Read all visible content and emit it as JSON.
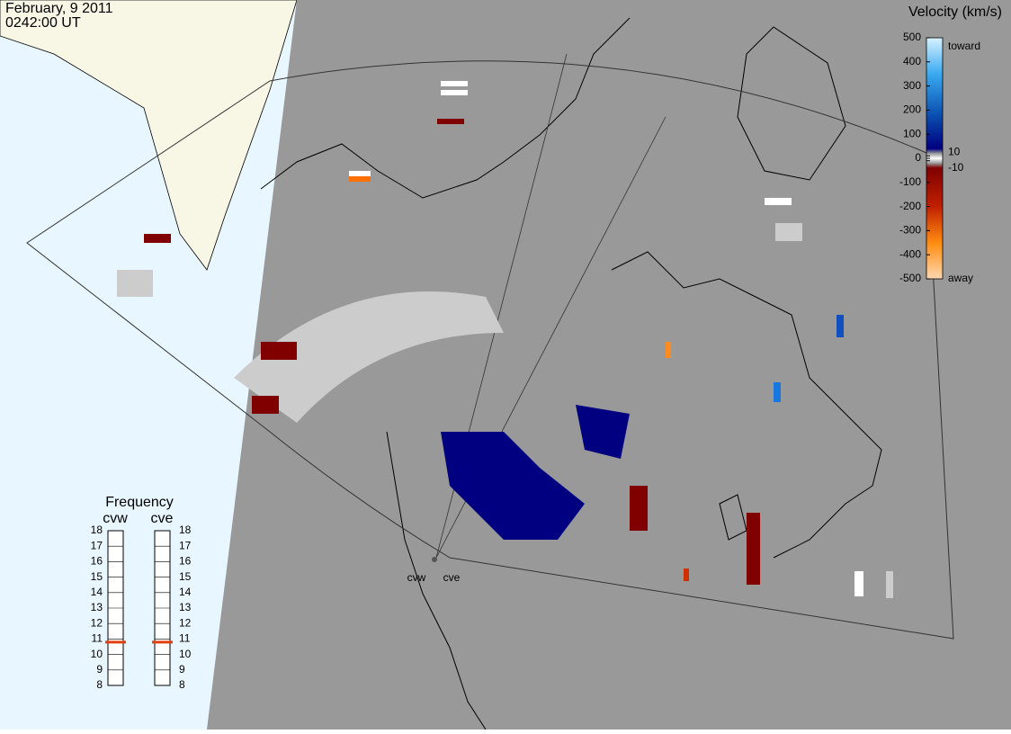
{
  "header": {
    "date": "February, 9 2011",
    "time": "0242:00 UT"
  },
  "velocity_scale": {
    "title": "Velocity (km/s)",
    "toward": "toward",
    "away": "away",
    "ticks": [
      500,
      400,
      300,
      200,
      100,
      10,
      0,
      -10,
      -100,
      -200,
      -300,
      -400,
      -500
    ]
  },
  "frequency": {
    "title": "Frequency",
    "ticks": [
      8,
      9,
      10,
      11,
      12,
      13,
      14,
      15,
      16,
      17,
      18
    ],
    "radars": [
      {
        "name": "cvw",
        "value": 10.8
      },
      {
        "name": "cve",
        "value": 10.8
      }
    ]
  },
  "stations": [
    "cvw",
    "cve"
  ]
}
